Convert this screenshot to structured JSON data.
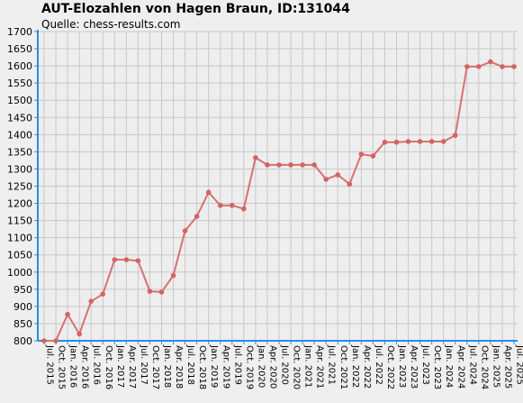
{
  "chart_data": {
    "type": "line",
    "title": "AUT-Elozahlen von Hagen Braun, ID:131044",
    "subtitle": "Quelle: chess-results.com",
    "ylim": [
      800,
      1700
    ],
    "yticks": [
      800,
      850,
      900,
      950,
      1000,
      1050,
      1100,
      1150,
      1200,
      1250,
      1300,
      1350,
      1400,
      1450,
      1500,
      1550,
      1600,
      1650,
      1700
    ],
    "grid": true,
    "categories": [
      "Jul. 2015",
      "Oct. 2015",
      "Jan. 2016",
      "Apr. 2016",
      "Jul. 2016",
      "Oct. 2016",
      "Jan. 2017",
      "Apr. 2017",
      "Jul. 2017",
      "Oct. 2017",
      "Jan. 2018",
      "Apr. 2018",
      "Jul. 2018",
      "Oct. 2018",
      "Jan. 2019",
      "Apr. 2019",
      "Jul. 2019",
      "Oct. 2019",
      "Jan. 2020",
      "Apr. 2020",
      "Jul. 2020",
      "Oct. 2020",
      "Jan. 2021",
      "Apr. 2021",
      "Jul. 2021",
      "Oct. 2021",
      "Jan. 2022",
      "Apr. 2022",
      "Jul. 2022",
      "Oct. 2022",
      "Jan. 2023",
      "Apr. 2023",
      "Jul. 2023",
      "Oct. 2023",
      "Jan. 2024",
      "Apr. 2024",
      "Jul. 2024",
      "Oct. 2024",
      "Jan. 2025",
      "Apr. 2025",
      "Jul. 2025"
    ],
    "series": [
      {
        "values": [
          800,
          800,
          877,
          820,
          915,
          936,
          1036,
          1036,
          1033,
          944,
          942,
          990,
          1120,
          1162,
          1232,
          1194,
          1194,
          1184,
          1333,
          1312,
          1312,
          1312,
          1312,
          1312,
          1270,
          1283,
          1256,
          1343,
          1338,
          1378,
          1378,
          1380,
          1380,
          1380,
          1380,
          1398,
          1598,
          1598,
          1612,
          1598,
          1598
        ]
      }
    ],
    "colors": {
      "background": "#efefef",
      "grid": "#c8c8c8",
      "axis": "#2a8de0",
      "line": "#d97070",
      "marker": "#d46464"
    }
  }
}
